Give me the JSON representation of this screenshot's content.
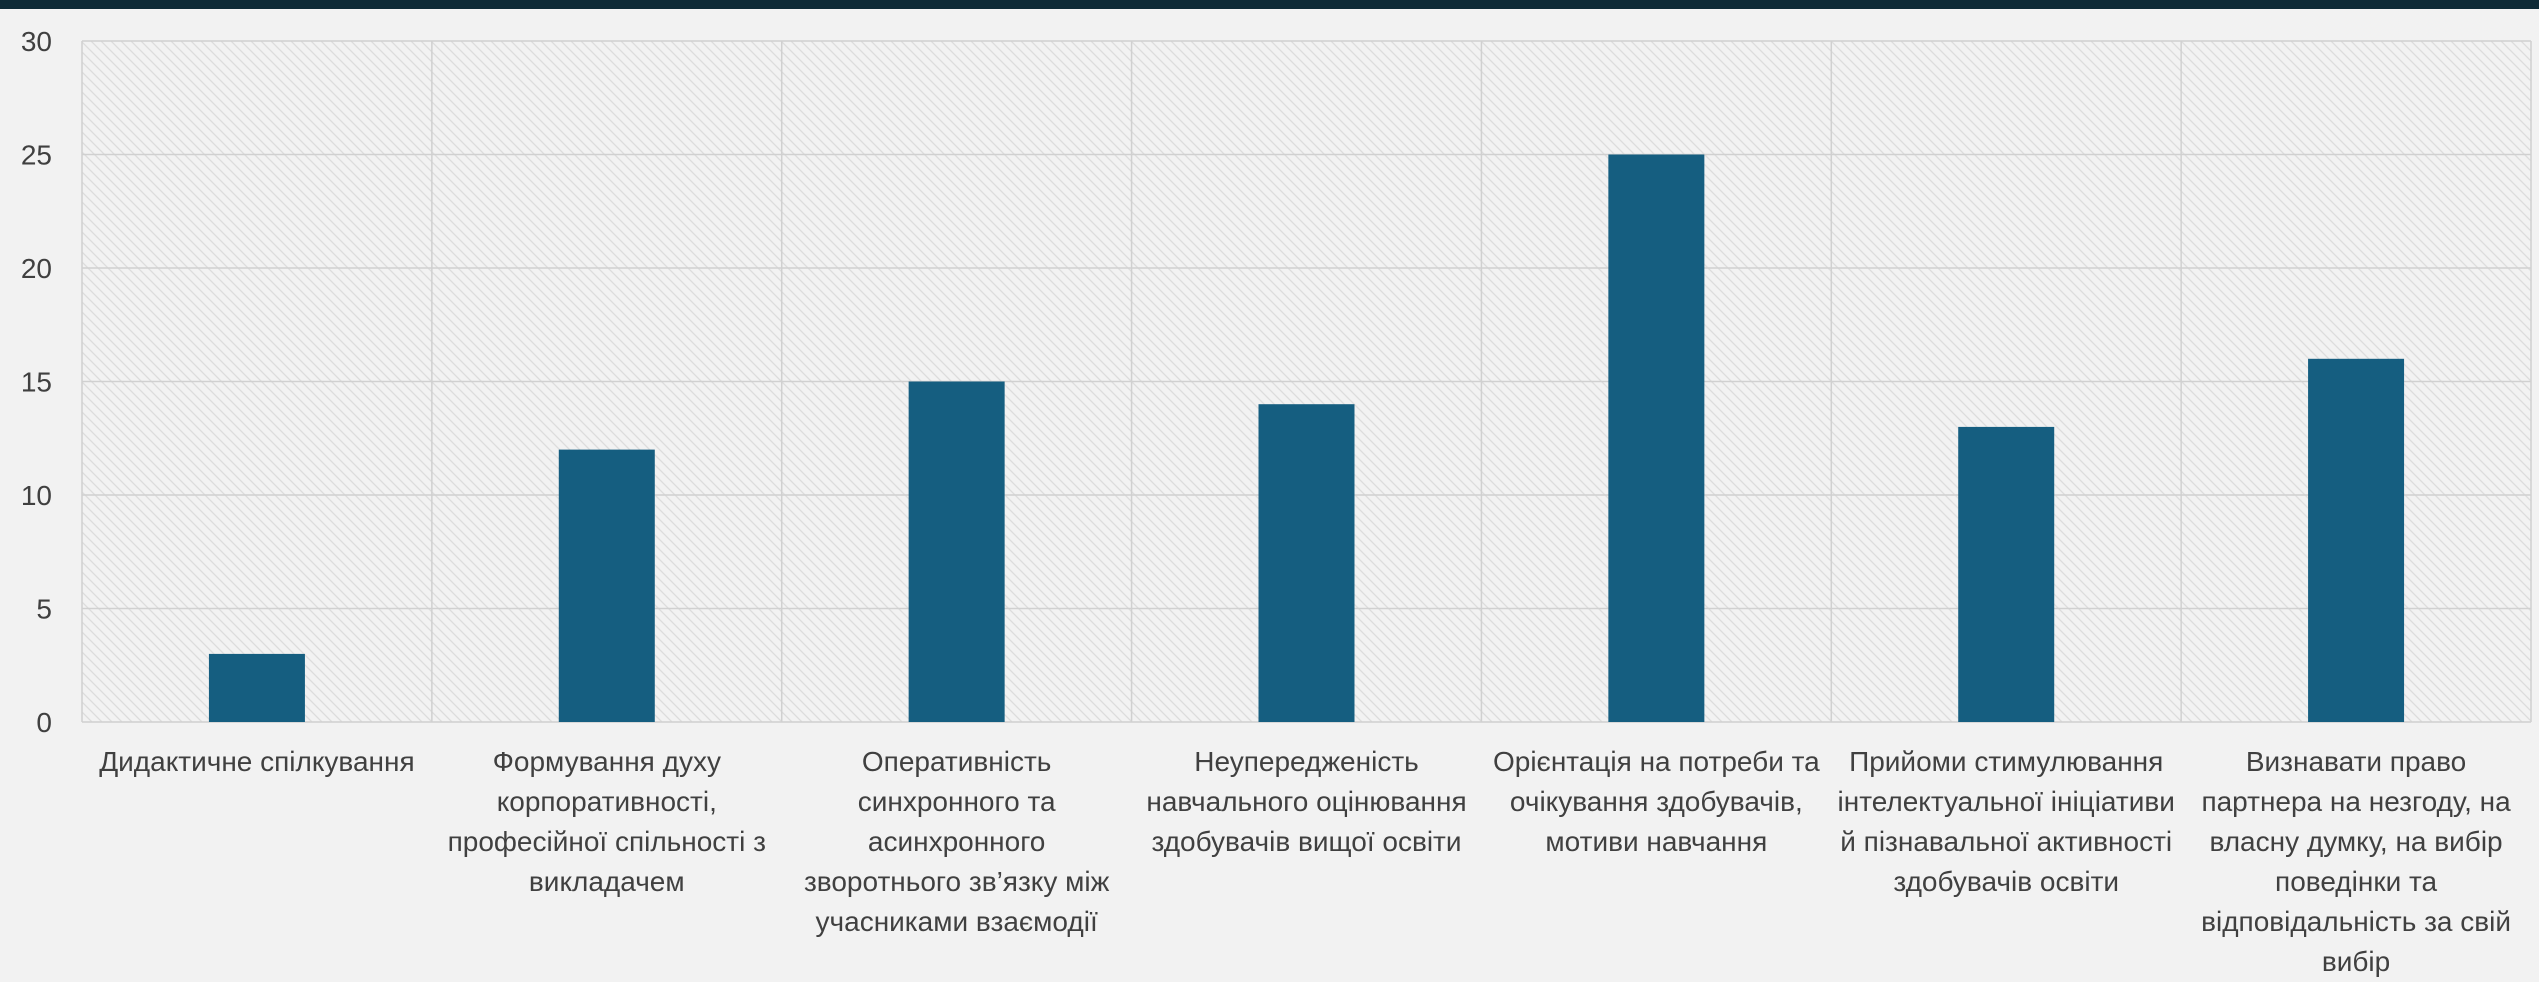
{
  "chart_data": {
    "type": "bar",
    "categories": [
      "Дидактичне спілкування",
      "Формування духу корпоративності, професійної спільності з викладачем",
      "Оперативність синхронного та асинхронного зворотнього зв’язку між учасниками взаємодії",
      "Неупередженість навчального оцінювання здобувачів вищої освіти",
      "Орієнтація на потреби та очікування здобувачів, мотиви навчання",
      "Прийоми стимулювання інтелектуальної ініціативи й пізнавальної активності здобувачів освіти",
      "Визнавати право партнера на незгоду, на власну думку, на вибір поведінки та відповідальність за свій вибір"
    ],
    "values": [
      3,
      12,
      15,
      14,
      25,
      13,
      16
    ],
    "ylim": [
      0,
      30
    ],
    "yticks": [
      0,
      5,
      10,
      15,
      20,
      25,
      30
    ],
    "grid": true,
    "legend": "none",
    "colors": {
      "bar": "#155e80",
      "grid": "#d0d0d0",
      "hatch": "#dcdcdc",
      "background": "#f2f2f2",
      "text": "#404040"
    }
  }
}
